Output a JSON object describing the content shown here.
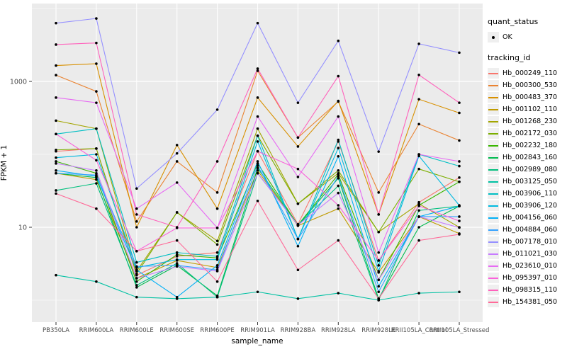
{
  "chart_data": {
    "type": "line",
    "title": "",
    "xlabel": "sample_name",
    "ylabel": "FPKM + 1",
    "x_categories": [
      "PB350LA",
      "RRIM600LA",
      "RRIM600LE",
      "RRIM600SE",
      "RRIM600PE",
      "RRIM901LA",
      "RRIM928BA",
      "RRIM928LA",
      "RRIM928LE",
      "RRII105LA_Control",
      "RRII105LA_Stressed"
    ],
    "y_axis": {
      "scale": "log10",
      "ticks": [
        {
          "label": "1000",
          "value": 1000
        },
        {
          "label": "10",
          "value": 10
        }
      ],
      "minor_gridlines": [
        10000,
        100,
        1
      ],
      "range_hint": [
        1,
        8000
      ]
    },
    "panel_bg": "#EBEBEB",
    "gridline_color": "#FFFFFF",
    "point_color": "#000000",
    "legend": {
      "quant_status": {
        "title": "quant_status",
        "items": [
          {
            "label": "OK",
            "marker": "point",
            "color": "#000000"
          }
        ]
      },
      "tracking_id": {
        "title": "tracking_id"
      }
    },
    "series": [
      {
        "name": "Hb_000249_110",
        "color": "#F8766D",
        "values": [
          110,
          120,
          2.2,
          4.0,
          4.5,
          110,
          11,
          150,
          3.5,
          22,
          48
        ]
      },
      {
        "name": "Hb_000300_530",
        "color": "#EA8331",
        "values": [
          1220,
          730,
          12,
          80,
          30,
          1400,
          170,
          530,
          30,
          260,
          155
        ]
      },
      {
        "name": "Hb_000483_370",
        "color": "#D89000",
        "values": [
          1650,
          1750,
          10,
          134,
          18,
          600,
          128,
          540,
          15,
          570,
          370
        ]
      },
      {
        "name": "Hb_001102_110",
        "color": "#C09B00",
        "values": [
          55,
          45,
          2.0,
          3.5,
          2.8,
          60,
          10.5,
          18,
          2.4,
          14,
          8.2
        ]
      },
      {
        "name": "Hb_001268_230",
        "color": "#A3A500",
        "values": [
          290,
          225,
          2.5,
          16,
          6.5,
          225,
          21,
          55,
          8.6,
          21,
          10
        ]
      },
      {
        "name": "Hb_002172_030",
        "color": "#7CAE00",
        "values": [
          115,
          120,
          2.3,
          16,
          5.8,
          180,
          21,
          60,
          8.6,
          63,
          42
        ]
      },
      {
        "name": "Hb_002232_180",
        "color": "#39B600",
        "values": [
          80,
          55,
          1.8,
          4.2,
          3.8,
          75,
          10.7,
          53,
          1.9,
          20,
          42
        ]
      },
      {
        "name": "Hb_002843_160",
        "color": "#00BB4E",
        "values": [
          55,
          48,
          1.5,
          3.0,
          1.15,
          65,
          10.7,
          47,
          1.05,
          10,
          19.5
        ]
      },
      {
        "name": "Hb_002989_080",
        "color": "#00BF7D",
        "values": [
          32,
          40,
          1.6,
          3.2,
          1.1,
          55,
          10.7,
          37,
          1.0,
          17,
          19.5
        ]
      },
      {
        "name": "Hb_003125_050",
        "color": "#00C1A3",
        "values": [
          2.2,
          1.8,
          1.1,
          1.05,
          1.1,
          1.3,
          1.05,
          1.25,
          1.0,
          1.25,
          1.3
        ]
      },
      {
        "name": "Hb_003906_110",
        "color": "#00BFC4",
        "values": [
          190,
          225,
          3.3,
          4.5,
          4.0,
          180,
          6.9,
          158,
          3.0,
          100,
          69
        ]
      },
      {
        "name": "Hb_003906_120",
        "color": "#00BAE0",
        "values": [
          90,
          100,
          2.8,
          3.6,
          3.6,
          150,
          6.9,
          122,
          2.5,
          95,
          20
        ]
      },
      {
        "name": "Hb_004156_060",
        "color": "#00B0F6",
        "values": [
          60,
          50,
          2.6,
          1.1,
          3.0,
          80,
          5.5,
          94,
          1.55,
          14,
          19.5
        ]
      },
      {
        "name": "Hb_004884_060",
        "color": "#35A2FF",
        "values": [
          55,
          52,
          2.9,
          3.0,
          2.6,
          70,
          6.9,
          50,
          1.3,
          14,
          14
        ]
      },
      {
        "name": "Hb_007178_010",
        "color": "#9590FF",
        "values": [
          6300,
          7300,
          34,
          103,
          410,
          6300,
          510,
          3600,
          109,
          3280,
          2480
        ]
      },
      {
        "name": "Hb_011021_030",
        "color": "#C77CFF",
        "values": [
          75,
          60,
          2.0,
          2.9,
          2.5,
          55,
          10.7,
          29.5,
          1.9,
          14,
          9.9
        ]
      },
      {
        "name": "Hb_023610_010",
        "color": "#E76BF3",
        "values": [
          600,
          510,
          18,
          41,
          9.8,
          330,
          49,
          330,
          4.5,
          100,
          80
        ]
      },
      {
        "name": "Hb_095397_010",
        "color": "#FA62DB",
        "values": [
          190,
          83,
          4.7,
          9.8,
          9.8,
          110,
          63,
          20,
          3.5,
          19.6,
          12.2
        ]
      },
      {
        "name": "Hb_098315_110",
        "color": "#FF62BC",
        "values": [
          3200,
          3370,
          15,
          10,
          80,
          1500,
          170,
          1180,
          15,
          1230,
          510
        ]
      },
      {
        "name": "Hb_154381_050",
        "color": "#FF6A98",
        "values": [
          29,
          18,
          4.7,
          6.6,
          1.8,
          23,
          2.6,
          6.6,
          1.05,
          6.6,
          8.0
        ]
      }
    ]
  }
}
